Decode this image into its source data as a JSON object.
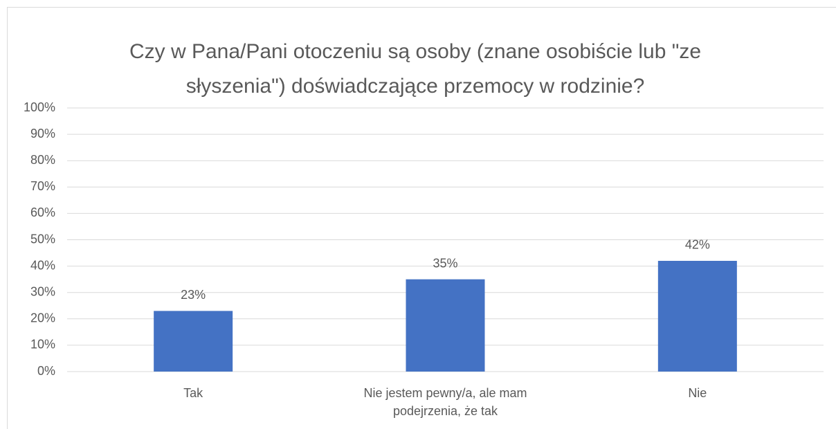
{
  "chart_data": {
    "type": "bar",
    "title": "Czy w Pana/Pani otoczeniu są osoby (znane osobiście lub \"ze słyszenia\") doświadczające przemocy w rodzinie?",
    "categories": [
      "Tak",
      "Nie jestem pewny/a, ale mam podejrzenia, że tak",
      "Nie"
    ],
    "values": [
      23,
      35,
      42
    ],
    "value_labels": [
      "23%",
      "35%",
      "42%"
    ],
    "color": "#4472c4",
    "ylim": [
      0,
      100
    ],
    "yticks": [
      {
        "value": 0,
        "label": "0%"
      },
      {
        "value": 10,
        "label": "10%"
      },
      {
        "value": 20,
        "label": "20%"
      },
      {
        "value": 30,
        "label": "30%"
      },
      {
        "value": 40,
        "label": "40%"
      },
      {
        "value": 50,
        "label": "50%"
      },
      {
        "value": 60,
        "label": "60%"
      },
      {
        "value": 70,
        "label": "70%"
      },
      {
        "value": 80,
        "label": "80%"
      },
      {
        "value": 90,
        "label": "90%"
      },
      {
        "value": 100,
        "label": "100%"
      }
    ],
    "grid": true
  }
}
